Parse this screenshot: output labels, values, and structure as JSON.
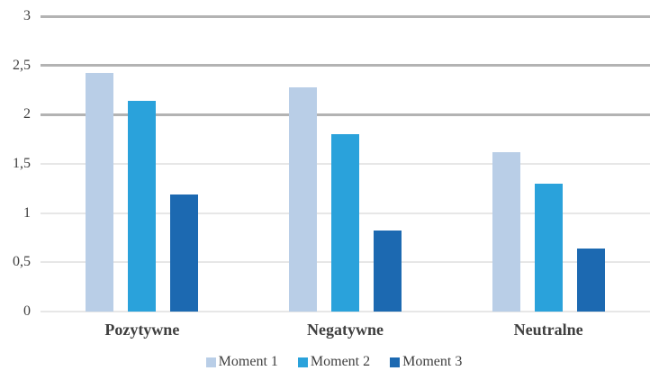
{
  "chart_data": {
    "type": "bar",
    "title": "",
    "xlabel": "",
    "ylabel": "",
    "categories": [
      "Pozytywne",
      "Negatywne",
      "Neutralne"
    ],
    "series": [
      {
        "name": "Moment 1",
        "color": "#b9cee7",
        "values": [
          2.42,
          2.28,
          1.62
        ]
      },
      {
        "name": "Moment 2",
        "color": "#2aa2db",
        "values": [
          2.14,
          1.8,
          1.3
        ]
      },
      {
        "name": "Moment 3",
        "color": "#1c69b1",
        "values": [
          1.19,
          0.82,
          0.64
        ]
      }
    ],
    "ylim": [
      0,
      3
    ],
    "yticks": [
      {
        "value": 0,
        "label": "0",
        "major": false
      },
      {
        "value": 0.5,
        "label": "0,5",
        "major": false
      },
      {
        "value": 1,
        "label": "1",
        "major": false
      },
      {
        "value": 1.5,
        "label": "1,5",
        "major": false
      },
      {
        "value": 2,
        "label": "2",
        "major": true
      },
      {
        "value": 2.5,
        "label": "2,5",
        "major": true
      },
      {
        "value": 3,
        "label": "3",
        "major": true
      }
    ],
    "grid": "horizontal",
    "legend_position": "bottom",
    "decimal_separator": ","
  },
  "style": {
    "background": "#ffffff",
    "grid_major_color": "#b3b3b3",
    "grid_minor_color": "#e7e7e7",
    "text_color": "#3f3f3f"
  }
}
